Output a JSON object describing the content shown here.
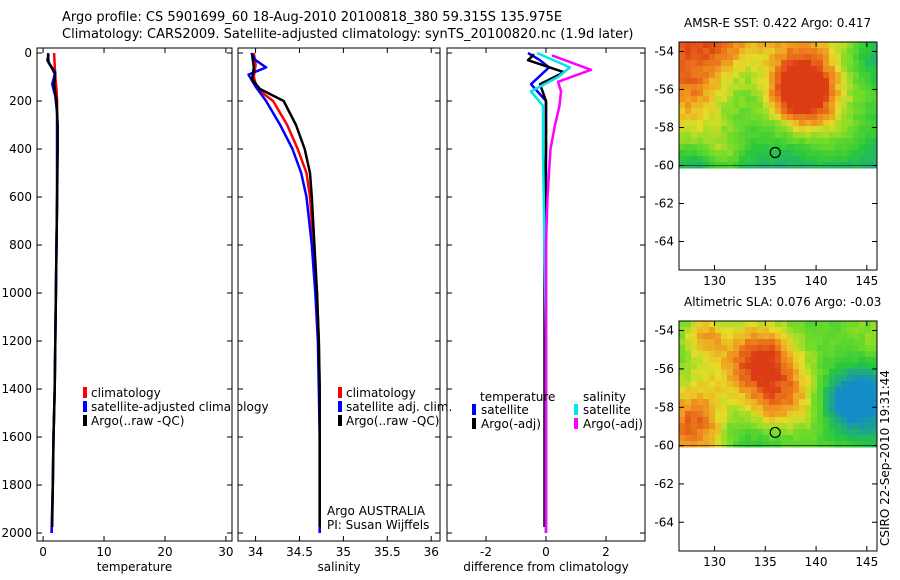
{
  "title": {
    "line1": "Argo profile: CS 5901699_60 18-Aug-2010 20100818_380 59.315S 135.975E",
    "line2": "Climatology: CARS2009. Satellite-adjusted climatology: synTS_20100820.nc (1.9d later)"
  },
  "credit": "CSIRO 22-Sep-2010 19:31:44",
  "colors": {
    "climatology": "#ff0000",
    "satellite": "#0000ff",
    "argo": "#000000",
    "sat_salinity": "#00e5ee",
    "argo_salinity": "#ff00ff"
  },
  "chart_data": [
    {
      "type": "line",
      "name": "temperature-profile",
      "xlabel": "temperature",
      "ylabel": "",
      "xlim": [
        -1,
        31
      ],
      "ylim": [
        2000,
        0
      ],
      "x_ticks": [
        0,
        10,
        20,
        30
      ],
      "y_ticks": [
        0,
        200,
        400,
        600,
        800,
        1000,
        1200,
        1400,
        1600,
        1800,
        2000
      ],
      "legend": [
        "climatology",
        "satellite-adjusted climatology",
        "Argo(..raw -QC)"
      ],
      "series": [
        {
          "name": "climatology",
          "color": "#ff0000",
          "points": [
            [
              1.8,
              0
            ],
            [
              1.9,
              50
            ],
            [
              2.0,
              100
            ],
            [
              2.2,
              150
            ],
            [
              2.3,
              200
            ],
            [
              2.3,
              300
            ],
            [
              2.3,
              400
            ],
            [
              2.3,
              600
            ],
            [
              2.2,
              800
            ],
            [
              2.1,
              1000
            ],
            [
              2.0,
              1200
            ],
            [
              1.9,
              1400
            ],
            [
              1.7,
              1600
            ],
            [
              1.6,
              1800
            ],
            [
              1.4,
              2000
            ]
          ]
        },
        {
          "name": "satellite-adjusted climatology",
          "color": "#0000ff",
          "points": [
            [
              0.8,
              0
            ],
            [
              0.9,
              40
            ],
            [
              2.0,
              80
            ],
            [
              1.5,
              130
            ],
            [
              2.0,
              180
            ],
            [
              2.3,
              250
            ],
            [
              2.3,
              400
            ],
            [
              2.3,
              600
            ],
            [
              2.2,
              800
            ],
            [
              2.1,
              1000
            ],
            [
              2.0,
              1200
            ],
            [
              1.9,
              1400
            ],
            [
              1.7,
              1600
            ],
            [
              1.6,
              1800
            ],
            [
              1.4,
              2000
            ]
          ]
        },
        {
          "name": "Argo(..raw -QC)",
          "color": "#000000",
          "points": [
            [
              0.9,
              5
            ],
            [
              0.7,
              30
            ],
            [
              1.6,
              70
            ],
            [
              2.0,
              90
            ],
            [
              1.8,
              130
            ],
            [
              2.2,
              200
            ],
            [
              2.4,
              300
            ],
            [
              2.4,
              400
            ],
            [
              2.3,
              600
            ],
            [
              2.2,
              800
            ],
            [
              2.1,
              1000
            ],
            [
              2.0,
              1200
            ],
            [
              1.9,
              1400
            ],
            [
              1.7,
              1600
            ],
            [
              1.6,
              1800
            ],
            [
              1.5,
              1975
            ]
          ]
        }
      ]
    },
    {
      "type": "line",
      "name": "salinity-profile",
      "xlabel": "salinity",
      "xlim": [
        33.8,
        36.1
      ],
      "ylim": [
        2000,
        0
      ],
      "x_ticks": [
        34,
        34.5,
        35,
        35.5,
        36
      ],
      "legend": [
        "climatology",
        "satellite adj. clim.",
        "Argo(..raw -QC)"
      ],
      "annotation": [
        "Argo AUSTRALIA",
        "PI: Susan Wijffels"
      ],
      "series": [
        {
          "name": "climatology",
          "color": "#ff0000",
          "points": [
            [
              33.98,
              0
            ],
            [
              34.0,
              50
            ],
            [
              33.98,
              100
            ],
            [
              34.02,
              150
            ],
            [
              34.2,
              200
            ],
            [
              34.36,
              300
            ],
            [
              34.48,
              400
            ],
            [
              34.58,
              500
            ],
            [
              34.62,
              600
            ],
            [
              34.66,
              800
            ],
            [
              34.7,
              1000
            ],
            [
              34.72,
              1200
            ],
            [
              34.73,
              1400
            ],
            [
              34.73,
              1600
            ],
            [
              34.73,
              1800
            ],
            [
              34.73,
              2000
            ]
          ]
        },
        {
          "name": "satellite adj. clim.",
          "color": "#0000ff",
          "points": [
            [
              33.95,
              0
            ],
            [
              34.0,
              30
            ],
            [
              34.12,
              60
            ],
            [
              33.92,
              90
            ],
            [
              34.0,
              140
            ],
            [
              34.12,
              200
            ],
            [
              34.28,
              300
            ],
            [
              34.42,
              400
            ],
            [
              34.52,
              500
            ],
            [
              34.58,
              600
            ],
            [
              34.64,
              800
            ],
            [
              34.68,
              1000
            ],
            [
              34.71,
              1200
            ],
            [
              34.72,
              1400
            ],
            [
              34.73,
              1600
            ],
            [
              34.73,
              1800
            ],
            [
              34.73,
              2000
            ]
          ]
        },
        {
          "name": "Argo(..raw -QC)",
          "color": "#000000",
          "points": [
            [
              33.96,
              5
            ],
            [
              33.98,
              60
            ],
            [
              33.96,
              110
            ],
            [
              34.05,
              150
            ],
            [
              34.32,
              200
            ],
            [
              34.46,
              300
            ],
            [
              34.56,
              400
            ],
            [
              34.62,
              500
            ],
            [
              34.64,
              600
            ],
            [
              34.67,
              800
            ],
            [
              34.7,
              1000
            ],
            [
              34.72,
              1200
            ],
            [
              34.73,
              1400
            ],
            [
              34.73,
              1600
            ],
            [
              34.73,
              1800
            ],
            [
              34.73,
              1975
            ]
          ]
        }
      ]
    },
    {
      "type": "line",
      "name": "difference-from-climatology",
      "xlabel": "difference from climatology",
      "xlim": [
        -3.3,
        3.3
      ],
      "ylim": [
        2000,
        0
      ],
      "x_ticks": [
        -2,
        0,
        2
      ],
      "legend_headings": [
        "temperature",
        "salinity"
      ],
      "legend": [
        "satellite",
        "Argo(-adj)",
        "satellite",
        "Argo(-adj)"
      ],
      "series": [
        {
          "name": "temperature satellite",
          "color": "#0000ff",
          "points": [
            [
              -0.6,
              0
            ],
            [
              -0.2,
              30
            ],
            [
              0.1,
              60
            ],
            [
              -0.5,
              130
            ],
            [
              0.0,
              200
            ],
            [
              0.0,
              400
            ],
            [
              0.0,
              2000
            ]
          ]
        },
        {
          "name": "temperature Argo(-adj)",
          "color": "#000000",
          "points": [
            [
              -0.4,
              5
            ],
            [
              -0.6,
              30
            ],
            [
              0.6,
              80
            ],
            [
              -0.2,
              130
            ],
            [
              0.0,
              200
            ],
            [
              0.0,
              400
            ],
            [
              -0.05,
              800
            ],
            [
              -0.05,
              1975
            ]
          ]
        },
        {
          "name": "salinity satellite",
          "color": "#00e5ee",
          "points": [
            [
              -0.3,
              0
            ],
            [
              0.8,
              60
            ],
            [
              0.4,
              100
            ],
            [
              -0.5,
              160
            ],
            [
              -0.1,
              220
            ],
            [
              -0.1,
              400
            ],
            [
              -0.05,
              800
            ],
            [
              0.0,
              1200
            ],
            [
              0.0,
              2000
            ]
          ]
        },
        {
          "name": "salinity Argo(-adj)",
          "color": "#ff00ff",
          "points": [
            [
              0.2,
              10
            ],
            [
              1.5,
              70
            ],
            [
              0.4,
              120
            ],
            [
              0.5,
              160
            ],
            [
              0.45,
              220
            ],
            [
              0.3,
              300
            ],
            [
              0.15,
              400
            ],
            [
              0.05,
              600
            ],
            [
              0.0,
              800
            ],
            [
              0.0,
              2000
            ]
          ]
        }
      ]
    },
    {
      "type": "heatmap",
      "name": "amsr-e-sst-map",
      "title": "AMSR-E SST: 0.422  Argo: 0.417",
      "xlim": [
        126.5,
        146
      ],
      "ylim": [
        -65.5,
        -53.5
      ],
      "x_ticks": [
        130,
        135,
        140,
        145
      ],
      "y_ticks": [
        -54,
        -56,
        -58,
        -60,
        -62,
        -64
      ],
      "data_lat_range": [
        -60,
        -53.5
      ],
      "float_position": {
        "lon": 135.975,
        "lat": -59.315
      }
    },
    {
      "type": "heatmap",
      "name": "altimetric-sla-map",
      "title": "Altimetric SLA: 0.076  Argo: -0.03",
      "xlim": [
        126.5,
        146
      ],
      "ylim": [
        -65.5,
        -53.5
      ],
      "x_ticks": [
        130,
        135,
        140,
        145
      ],
      "y_ticks": [
        -54,
        -56,
        -58,
        -60,
        -62,
        -64
      ],
      "data_lat_range": [
        -60,
        -53.5
      ],
      "float_position": {
        "lon": 135.975,
        "lat": -59.315
      }
    }
  ]
}
